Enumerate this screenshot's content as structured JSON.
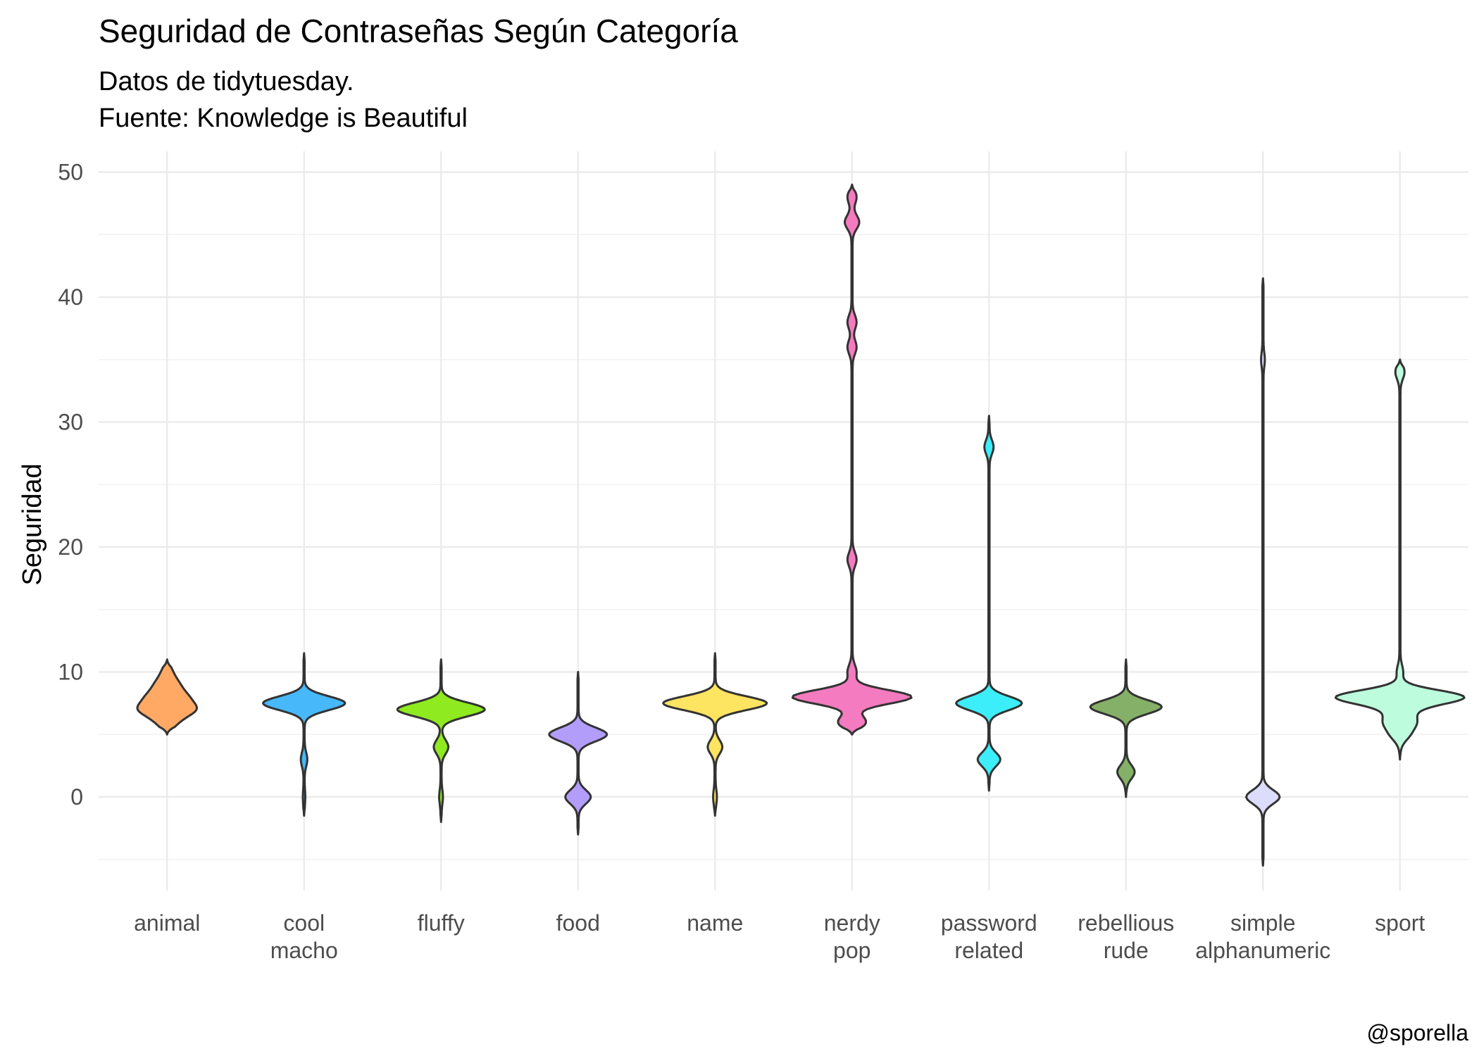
{
  "chart_data": {
    "type": "violin",
    "title": "Seguridad de Contraseñas Según Categoría",
    "subtitle_lines": [
      "Datos de tidytuesday.",
      "Fuente: Knowledge is Beautiful"
    ],
    "xlabel": "",
    "ylabel": "Seguridad",
    "caption": "@sporella",
    "ylim": [
      -8,
      52
    ],
    "yticks": [
      0,
      10,
      20,
      30,
      40,
      50
    ],
    "grid": true,
    "legend": "none",
    "categories": [
      {
        "label_lines": [
          "animal"
        ],
        "color": "#FFA965",
        "range": [
          5,
          11
        ],
        "modes": [
          [
            7,
            0.18
          ],
          [
            8,
            0.12
          ],
          [
            9,
            0.07
          ],
          [
            6,
            0.06
          ],
          [
            10,
            0.03
          ]
        ]
      },
      {
        "label_lines": [
          "cool",
          "macho"
        ],
        "color": "#47B8F9",
        "range": [
          -1.5,
          11.5
        ],
        "modes": [
          [
            7.5,
            0.3
          ],
          [
            3,
            0.02
          ],
          [
            0,
            0.005
          ]
        ]
      },
      {
        "label_lines": [
          "fluffy"
        ],
        "color": "#8FEA1F",
        "range": [
          -2,
          11
        ],
        "modes": [
          [
            7,
            0.32
          ],
          [
            4,
            0.05
          ],
          [
            0,
            0.01
          ]
        ]
      },
      {
        "label_lines": [
          "food"
        ],
        "color": "#B39DFB",
        "range": [
          -3,
          10
        ],
        "modes": [
          [
            5,
            0.21
          ],
          [
            0,
            0.09
          ]
        ]
      },
      {
        "label_lines": [
          "name"
        ],
        "color": "#FDE461",
        "range": [
          -1.5,
          11.5
        ],
        "modes": [
          [
            7.5,
            0.38
          ],
          [
            4,
            0.05
          ],
          [
            0,
            0.01
          ]
        ]
      },
      {
        "label_lines": [
          "nerdy",
          "pop"
        ],
        "color": "#F47BC0",
        "range": [
          5,
          49
        ],
        "modes": [
          [
            8,
            0.44
          ],
          [
            6,
            0.1
          ],
          [
            10,
            0.03
          ],
          [
            19,
            0.03
          ],
          [
            36,
            0.03
          ],
          [
            38,
            0.03
          ],
          [
            46,
            0.05
          ],
          [
            48,
            0.03
          ]
        ]
      },
      {
        "label_lines": [
          "password",
          "related"
        ],
        "color": "#3CEEFA",
        "range": [
          0.5,
          30.5
        ],
        "modes": [
          [
            7.5,
            0.24
          ],
          [
            3,
            0.08
          ],
          [
            28,
            0.03
          ]
        ]
      },
      {
        "label_lines": [
          "rebellious",
          "rude"
        ],
        "color": "#85B067",
        "range": [
          0,
          11
        ],
        "modes": [
          [
            7.2,
            0.26
          ],
          [
            2,
            0.06
          ]
        ]
      },
      {
        "label_lines": [
          "simple",
          "alphanumeric"
        ],
        "color": "#DCDCFC",
        "range": [
          -5.5,
          41.5
        ],
        "modes": [
          [
            0,
            0.12
          ],
          [
            35,
            0.01
          ]
        ]
      },
      {
        "label_lines": [
          "sport"
        ],
        "color": "#BDFDDE",
        "range": [
          3,
          35
        ],
        "modes": [
          [
            8,
            0.46
          ],
          [
            6,
            0.1
          ],
          [
            5,
            0.06
          ],
          [
            7,
            0.07
          ],
          [
            10,
            0.02
          ],
          [
            34,
            0.03
          ]
        ]
      }
    ]
  }
}
